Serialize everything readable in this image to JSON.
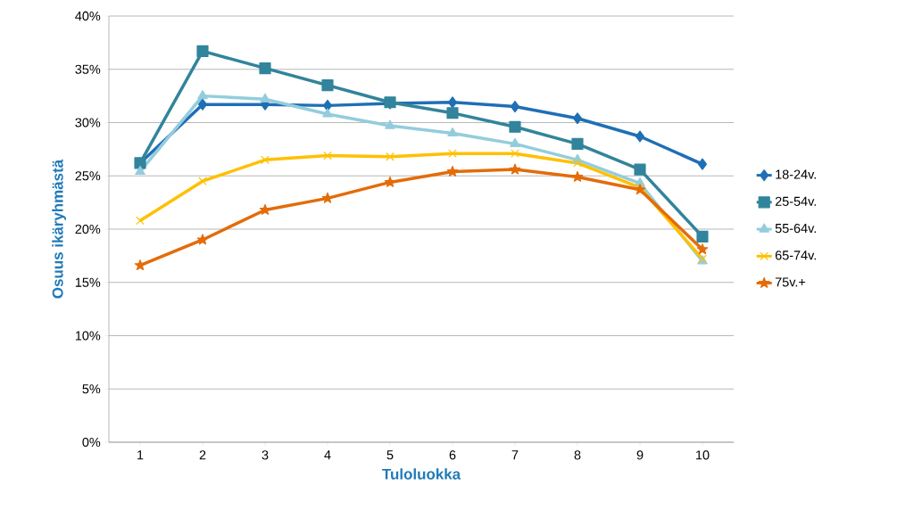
{
  "chart_data": {
    "type": "line",
    "xlabel": "Tuloluokka",
    "ylabel": "Osuus ikäryhmästä",
    "categories": [
      "1",
      "2",
      "3",
      "4",
      "5",
      "6",
      "7",
      "8",
      "9",
      "10"
    ],
    "series": [
      {
        "name": "18-24v.",
        "color": "#1f6fb5",
        "marker": "diamond",
        "values": [
          26.2,
          31.7,
          31.7,
          31.6,
          31.8,
          31.9,
          31.5,
          30.4,
          28.7,
          26.1
        ]
      },
      {
        "name": "25-54v.",
        "color": "#31849b",
        "marker": "square",
        "values": [
          26.2,
          36.7,
          35.1,
          33.5,
          31.9,
          30.9,
          29.6,
          28.0,
          25.6,
          19.3
        ]
      },
      {
        "name": "55-64v.",
        "color": "#93cddd",
        "marker": "triangle",
        "values": [
          25.4,
          32.5,
          32.2,
          30.8,
          29.7,
          29.0,
          28.0,
          26.5,
          24.3,
          17.0
        ]
      },
      {
        "name": "65-74v.",
        "color": "#ffc000",
        "marker": "cross",
        "values": [
          20.8,
          24.5,
          26.5,
          26.9,
          26.8,
          27.1,
          27.1,
          26.2,
          23.9,
          17.2
        ]
      },
      {
        "name": "75v.+",
        "color": "#e36c09",
        "marker": "star",
        "values": [
          16.6,
          19.0,
          21.8,
          22.9,
          24.4,
          25.4,
          25.6,
          24.9,
          23.7,
          18.1
        ]
      }
    ],
    "ylim": [
      0,
      40
    ],
    "yticks": [
      {
        "value": 0,
        "label": "0%"
      },
      {
        "value": 5,
        "label": "5%"
      },
      {
        "value": 10,
        "label": "10%"
      },
      {
        "value": 15,
        "label": "15%"
      },
      {
        "value": 20,
        "label": "20%"
      },
      {
        "value": 25,
        "label": "25%"
      },
      {
        "value": 30,
        "label": "30%"
      },
      {
        "value": 35,
        "label": "35%"
      },
      {
        "value": 40,
        "label": "40%"
      }
    ],
    "grid": "y",
    "legend": "right",
    "line_style": "solid"
  }
}
